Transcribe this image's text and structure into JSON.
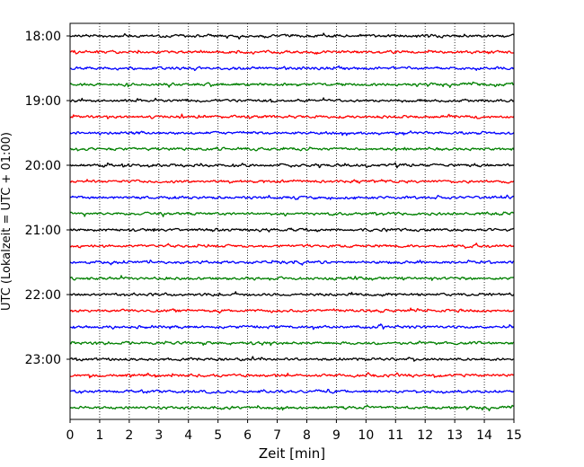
{
  "chart_data": {
    "type": "line",
    "xlabel": "Zeit  [min]",
    "ylabel": "UTC (Lokalzeit = UTC + 01:00)",
    "xlim": [
      0,
      15
    ],
    "x_ticks": [
      "0",
      "1",
      "2",
      "3",
      "4",
      "5",
      "6",
      "7",
      "8",
      "9",
      "10",
      "11",
      "12",
      "13",
      "14",
      "15"
    ],
    "y_tick_labels": [
      "18:00",
      "19:00",
      "20:00",
      "21:00",
      "22:00",
      "23:00"
    ],
    "traces_per_hour": 4,
    "trace_minutes": 15,
    "trace_colors": [
      "#000000",
      "#ff0000",
      "#0000ff",
      "#008000"
    ],
    "traces": [
      "18:00",
      "18:15",
      "18:30",
      "18:45",
      "19:00",
      "19:15",
      "19:30",
      "19:45",
      "20:00",
      "20:15",
      "20:30",
      "20:45",
      "21:00",
      "21:15",
      "21:30",
      "21:45",
      "22:00",
      "22:15",
      "22:30",
      "22:45",
      "23:00",
      "23:15",
      "23:30",
      "23:45"
    ],
    "grid": "vertical dotted",
    "legend": "none"
  }
}
